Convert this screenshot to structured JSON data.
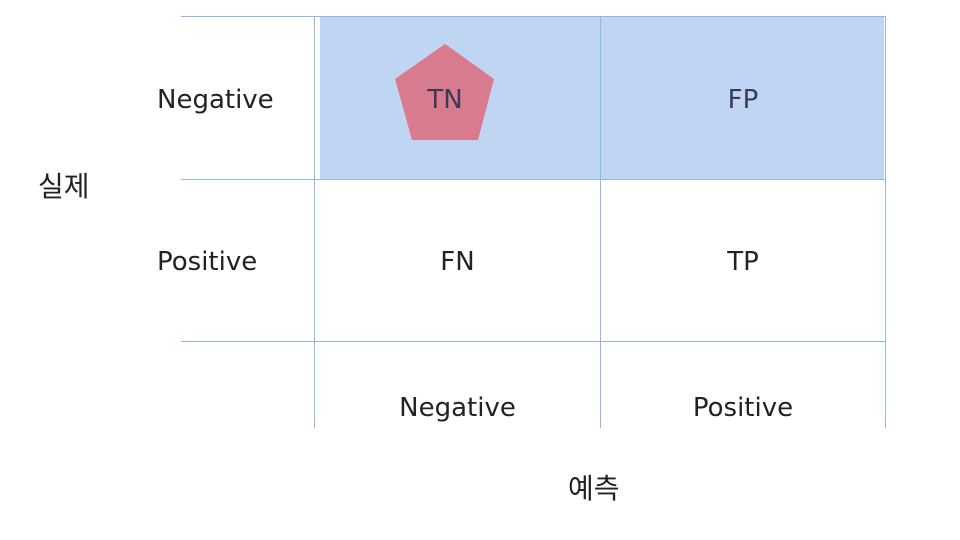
{
  "actual_label": "실제",
  "predicted_label": "예측",
  "row_labels": [
    "Negative",
    "Positive"
  ],
  "column_labels": [
    "Negative",
    "Positive"
  ],
  "cells": {
    "tn": "TN",
    "fp": "FP",
    "fn": "FN",
    "tp": "TP"
  },
  "colors": {
    "highlight": "#c0d5f3",
    "grid_line": "#8fb8e2",
    "pentagon": "#d97b8f"
  },
  "marker_icon": "pentagon"
}
